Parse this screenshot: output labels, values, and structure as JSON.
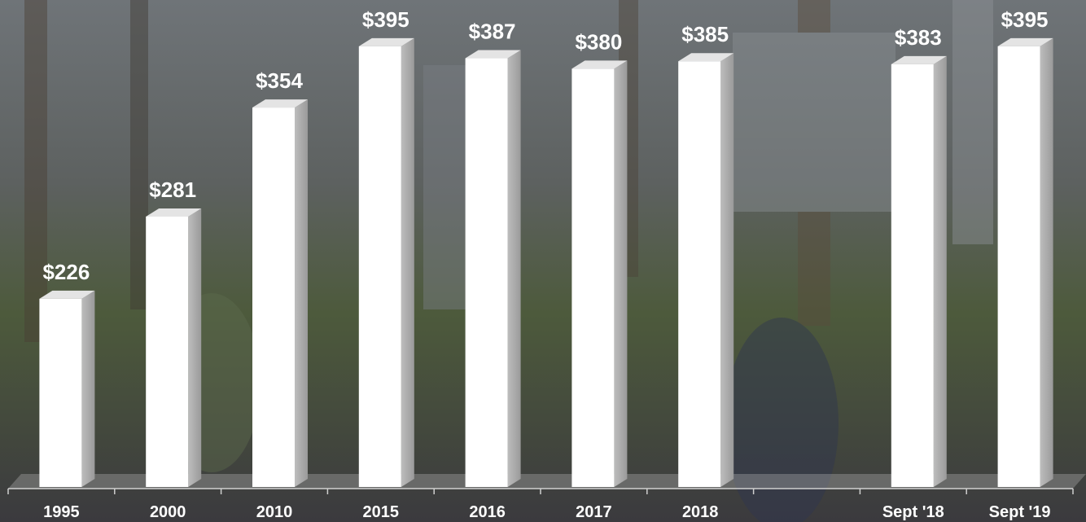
{
  "chart_data": {
    "type": "bar3d",
    "categories": [
      "1995",
      "2000",
      "2010",
      "2015",
      "2016",
      "2017",
      "2018",
      null,
      "Sept '18",
      "Sept '19"
    ],
    "values": [
      226,
      281,
      354,
      395,
      387,
      380,
      385,
      null,
      383,
      395
    ],
    "value_labels": [
      "$226",
      "$281",
      "$354",
      "$395",
      "$387",
      "$380",
      "$385",
      null,
      "$383",
      "$395"
    ],
    "color": "#ffffff",
    "ylim": [
      100,
      426
    ]
  }
}
